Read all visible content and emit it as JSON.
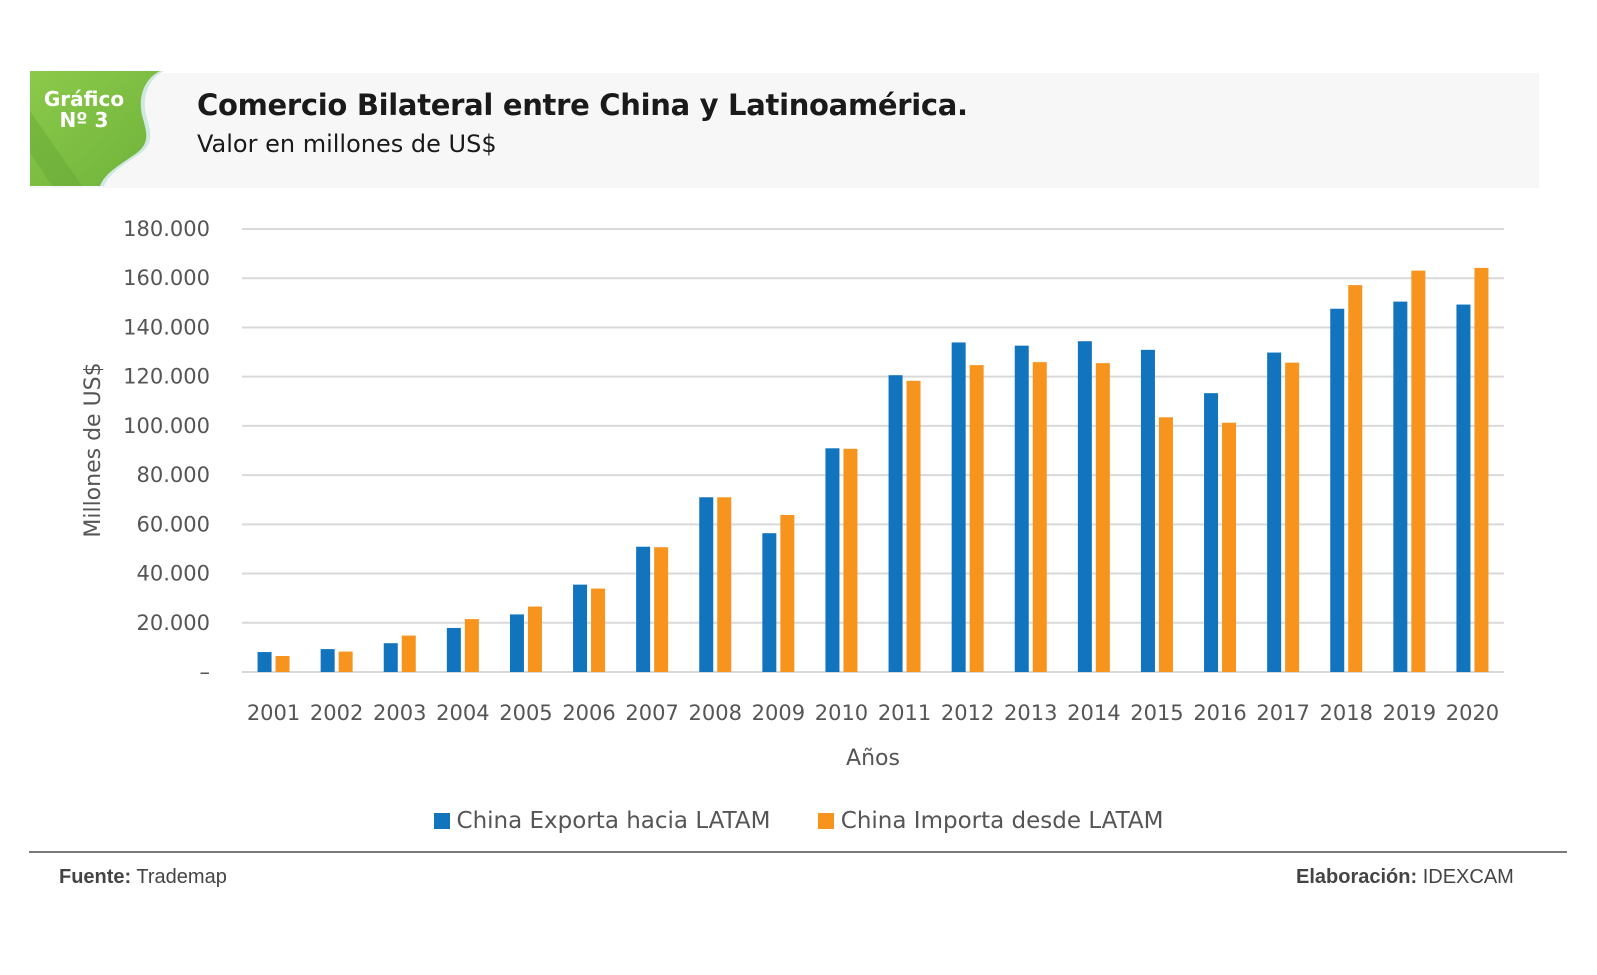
{
  "header": {
    "badge_line1": "Gráfico",
    "badge_line2": "Nº 3",
    "title": "Comercio Bilateral entre China y Latinoamérica.",
    "subtitle": "Valor en millones de US$"
  },
  "colors": {
    "export": "#1274bd",
    "import": "#f7941d",
    "badge_green": "#7dc142",
    "gridline": "#d9d9d9"
  },
  "chart_data": {
    "type": "bar",
    "title": "Comercio Bilateral entre China y Latinoamérica.",
    "subtitle": "Valor en millones de US$",
    "xlabel": "Años",
    "ylabel": "Millones de US$",
    "ylim": [
      0,
      180000
    ],
    "yticks": [
      0,
      20000,
      40000,
      60000,
      80000,
      100000,
      120000,
      140000,
      160000,
      180000
    ],
    "ytick_labels": [
      "–",
      "20.000",
      "40.000",
      "60.000",
      "80.000",
      "100.000",
      "120.000",
      "140.000",
      "160.000",
      "180.000"
    ],
    "grid": true,
    "legend_position": "bottom",
    "categories": [
      "2001",
      "2002",
      "2003",
      "2004",
      "2005",
      "2006",
      "2007",
      "2008",
      "2009",
      "2010",
      "2011",
      "2012",
      "2013",
      "2014",
      "2015",
      "2016",
      "2017",
      "2018",
      "2019",
      "2020"
    ],
    "series": [
      {
        "name": "China Exporta hacia LATAM",
        "color": "#1274bd",
        "values": [
          8100,
          9300,
          11700,
          17900,
          23400,
          35500,
          50900,
          71000,
          56400,
          90900,
          120600,
          133900,
          132600,
          134400,
          130900,
          113300,
          129800,
          147600,
          150500,
          149300
        ]
      },
      {
        "name": "China Importa desde LATAM",
        "color": "#f7941d",
        "values": [
          6500,
          8300,
          14800,
          21500,
          26600,
          33900,
          50700,
          71000,
          63800,
          90700,
          118300,
          124700,
          125900,
          125500,
          103500,
          101300,
          125700,
          157200,
          163100,
          164200
        ]
      }
    ]
  },
  "footer": {
    "source_label": "Fuente:",
    "source_value": "Trademap",
    "credit_label": "Elaboración:",
    "credit_value": "IDEXCAM"
  }
}
